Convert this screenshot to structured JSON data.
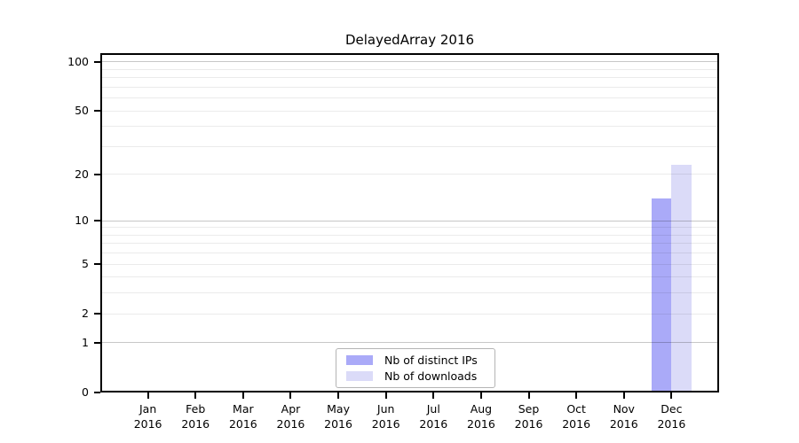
{
  "chart_data": {
    "type": "bar",
    "title": "DelayedArray 2016",
    "xlabel": "",
    "ylabel": "",
    "categories": [
      "Jan",
      "Feb",
      "Mar",
      "Apr",
      "May",
      "Jun",
      "Jul",
      "Aug",
      "Sep",
      "Oct",
      "Nov",
      "Dec"
    ],
    "year_label": "2016",
    "series": [
      {
        "name": "Nb of distinct IPs",
        "color": "#aaaaf8",
        "values": [
          0,
          0,
          0,
          0,
          0,
          0,
          0,
          0,
          0,
          0,
          0,
          14
        ]
      },
      {
        "name": "Nb of downloads",
        "color": "#dbdbf8",
        "values": [
          0,
          0,
          0,
          0,
          0,
          0,
          0,
          0,
          0,
          0,
          0,
          23
        ]
      }
    ],
    "yscale": "log1p",
    "yticks": [
      0,
      1,
      2,
      5,
      10,
      20,
      50,
      100
    ],
    "ylim": [
      0,
      113
    ],
    "grid_major": [
      1,
      10,
      100
    ],
    "grid_minor": [
      2,
      3,
      4,
      5,
      6,
      7,
      8,
      9,
      20,
      30,
      40,
      50,
      60,
      70,
      80,
      90
    ],
    "legend": {
      "position": "bottom-center",
      "items": [
        "Nb of distinct IPs",
        "Nb of downloads"
      ]
    },
    "colors": {
      "grid_major": "#c7c7c7",
      "grid_minor": "#ececec",
      "axis": "#000000",
      "background": "#ffffff"
    }
  }
}
